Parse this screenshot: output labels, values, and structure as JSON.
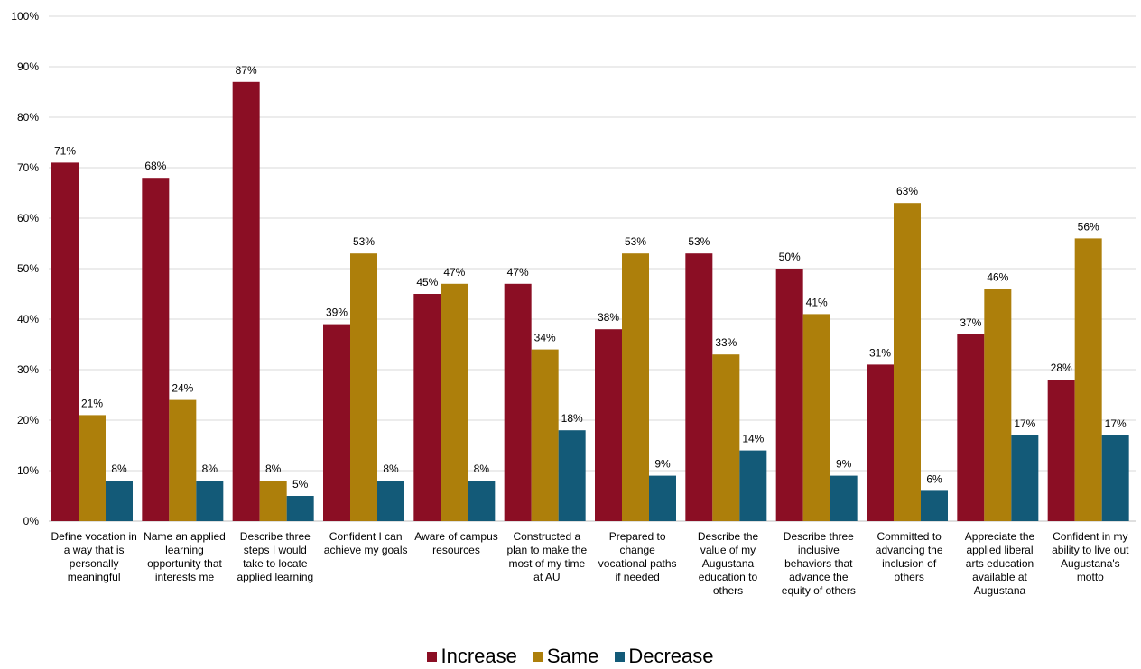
{
  "chart_data": {
    "type": "bar",
    "categories": [
      "Define vocation in a way that is personally meaningful",
      "Name an applied learning opportunity that interests me",
      "Describe three steps I would take to locate applied learning",
      "Confident I can achieve my goals",
      "Aware of campus resources",
      "Constructed a plan to make the most of my time at AU",
      "Prepared to change vocational paths if needed",
      "Describe the value of my Augustana education to others",
      "Describe three inclusive behaviors that advance the equity of others",
      "Committed to advancing the inclusion of others",
      "Appreciate the applied liberal arts education available at Augustana",
      "Confident in my ability to live out Augustana's motto"
    ],
    "series": [
      {
        "name": "Increase",
        "color": "#8b0e24",
        "values": [
          71,
          68,
          87,
          39,
          45,
          47,
          38,
          53,
          50,
          31,
          37,
          28
        ],
        "labels": [
          "71%",
          "68%",
          "87%",
          "39%",
          "45%",
          "47%",
          "38%",
          "53%",
          "50%",
          "31%",
          "37%",
          "28%"
        ]
      },
      {
        "name": "Same",
        "color": "#ad7f0b",
        "values": [
          21,
          24,
          8,
          53,
          47,
          34,
          53,
          33,
          41,
          63,
          46,
          56
        ],
        "labels": [
          "21%",
          "24%",
          "8%",
          "53%",
          "47%",
          "34%",
          "53%",
          "33%",
          "41%",
          "63%",
          "46%",
          "56%"
        ]
      },
      {
        "name": "Decrease",
        "color": "#135a78",
        "values": [
          8,
          8,
          5,
          8,
          8,
          18,
          9,
          14,
          9,
          6,
          17,
          17
        ],
        "labels": [
          "8%",
          "8%",
          "5%",
          "8%",
          "8%",
          "18%",
          "9%",
          "14%",
          "9%",
          "6%",
          "17%",
          "17%"
        ]
      }
    ],
    "y_ticks": [
      "0%",
      "10%",
      "20%",
      "30%",
      "40%",
      "50%",
      "60%",
      "70%",
      "80%",
      "90%",
      "100%"
    ],
    "ylim": [
      0,
      100
    ],
    "grid": true,
    "legend_position": "bottom"
  }
}
